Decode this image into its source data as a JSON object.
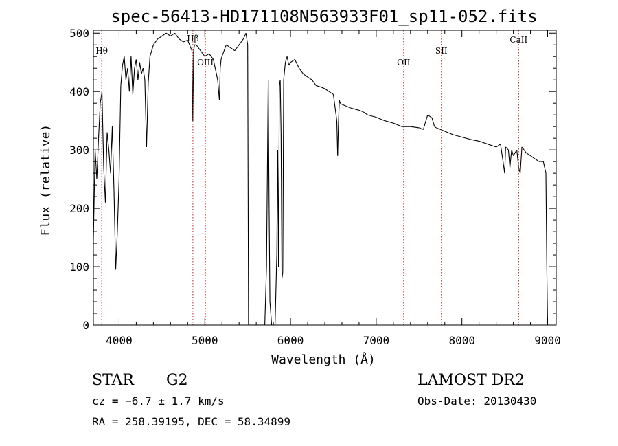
{
  "chart_data": {
    "type": "line",
    "title": "spec-56413-HD171108N563933F01_sp11-052.fits",
    "xlabel": "Wavelength (Å)",
    "ylabel": "Flux (relative)",
    "xlim": [
      3700,
      9100
    ],
    "ylim": [
      0,
      505
    ],
    "x_ticks": [
      4000,
      5000,
      6000,
      7000,
      8000,
      9000
    ],
    "y_ticks": [
      0,
      100,
      200,
      300,
      400,
      500
    ],
    "grid": false,
    "line_color": "#000000",
    "marker_color": "#b22222",
    "lines": [
      {
        "label": "Hθ",
        "x": 3797
      },
      {
        "label": "Hβ",
        "x": 4861
      },
      {
        "label": "OIII",
        "x": 5007
      },
      {
        "label": "OII",
        "x": 7320
      },
      {
        "label": "SII",
        "x": 7760
      },
      {
        "label": "CaII",
        "x": 8662
      }
    ],
    "series": [
      {
        "x": [
          3700,
          3720,
          3740,
          3760,
          3780,
          3800,
          3820,
          3840,
          3860,
          3880,
          3900,
          3920,
          3940,
          3960,
          3980,
          4000,
          4020,
          4040,
          4060,
          4080,
          4100,
          4120,
          4140,
          4160,
          4180,
          4200,
          4220,
          4240,
          4260,
          4280,
          4300,
          4320,
          4340,
          4360,
          4380,
          4400,
          4450,
          4500,
          4550,
          4600,
          4650,
          4700,
          4750,
          4800,
          4850,
          4860,
          4870,
          4880,
          4900,
          4950,
          5000,
          5050,
          5100,
          5150,
          5170,
          5180,
          5190,
          5200,
          5250,
          5300,
          5350,
          5400,
          5450,
          5480,
          5490,
          5500,
          5510,
          5520,
          5550,
          5600,
          5650,
          5700,
          5720,
          5740,
          5750,
          5760,
          5780,
          5800,
          5820,
          5840,
          5850,
          5860,
          5870,
          5880,
          5890,
          5900,
          5910,
          5920,
          5940,
          5960,
          5980,
          6000,
          6050,
          6100,
          6150,
          6200,
          6250,
          6300,
          6350,
          6400,
          6450,
          6500,
          6540,
          6550,
          6560,
          6570,
          6580,
          6600,
          6650,
          6700,
          6750,
          6800,
          6850,
          6900,
          6950,
          7000,
          7100,
          7200,
          7300,
          7400,
          7500,
          7550,
          7600,
          7650,
          7680,
          7700,
          7750,
          7800,
          7900,
          8000,
          8100,
          8200,
          8300,
          8400,
          8450,
          8480,
          8498,
          8510,
          8542,
          8560,
          8580,
          8600,
          8640,
          8662,
          8680,
          8700,
          8750,
          8800,
          8850,
          8900,
          8950,
          8980,
          8990,
          9000,
          9010
        ],
        "y": [
          145,
          300,
          250,
          320,
          380,
          400,
          270,
          210,
          330,
          300,
          260,
          340,
          230,
          95,
          160,
          250,
          410,
          445,
          460,
          420,
          440,
          400,
          460,
          395,
          440,
          455,
          420,
          450,
          430,
          440,
          420,
          305,
          415,
          460,
          470,
          480,
          490,
          495,
          500,
          495,
          500,
          490,
          485,
          488,
          470,
          350,
          470,
          480,
          480,
          470,
          460,
          465,
          455,
          420,
          385,
          440,
          455,
          460,
          480,
          475,
          470,
          480,
          490,
          500,
          490,
          480,
          0,
          0,
          0,
          0,
          0,
          0,
          100,
          420,
          200,
          40,
          0,
          0,
          0,
          120,
          300,
          100,
          410,
          420,
          330,
          80,
          90,
          420,
          450,
          460,
          445,
          450,
          455,
          440,
          430,
          425,
          420,
          410,
          408,
          405,
          400,
          395,
          350,
          290,
          350,
          385,
          380,
          378,
          375,
          372,
          370,
          368,
          365,
          360,
          358,
          356,
          350,
          346,
          340,
          340,
          338,
          335,
          360,
          355,
          340,
          338,
          335,
          332,
          326,
          322,
          318,
          315,
          310,
          305,
          310,
          280,
          260,
          305,
          300,
          270,
          300,
          290,
          300,
          270,
          260,
          305,
          295,
          290,
          285,
          280,
          280,
          260,
          100,
          0,
          0
        ]
      }
    ]
  },
  "footer": {
    "object_class": "STAR",
    "subclass": "G2",
    "cz": "cz = −6.7 ± 1.7 km/s",
    "coords": "RA = 258.39195, DEC =  58.34899",
    "survey": "LAMOST DR2",
    "obs_date": "Obs-Date: 20130430"
  }
}
